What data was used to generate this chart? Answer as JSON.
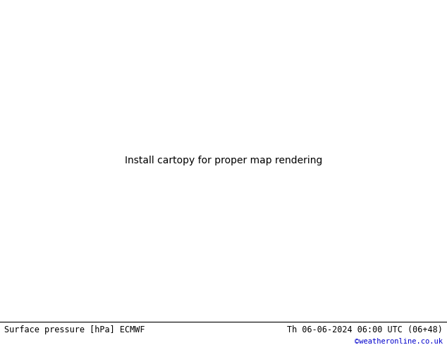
{
  "title_left": "Surface pressure [hPa] ECMWF",
  "title_right": "Th 06-06-2024 06:00 UTC (06+48)",
  "credit": "©weatheronline.co.uk",
  "figsize": [
    6.34,
    4.9
  ],
  "dpi": 100,
  "map_extent": [
    4.0,
    17.0,
    46.5,
    56.5
  ],
  "land_color": "#b5e6a0",
  "sea_color": "#c8c8c8",
  "germany_color": "#90d870",
  "border_color": "#555555",
  "germany_border_color": "#000000",
  "blue_color": "#0000ff",
  "black_color": "#000000",
  "red_color": "#ff0000",
  "bottom_bg": "#ffffff",
  "credit_color": "#0000cc",
  "label_fontsize": 7.5,
  "line_width": 1.2
}
